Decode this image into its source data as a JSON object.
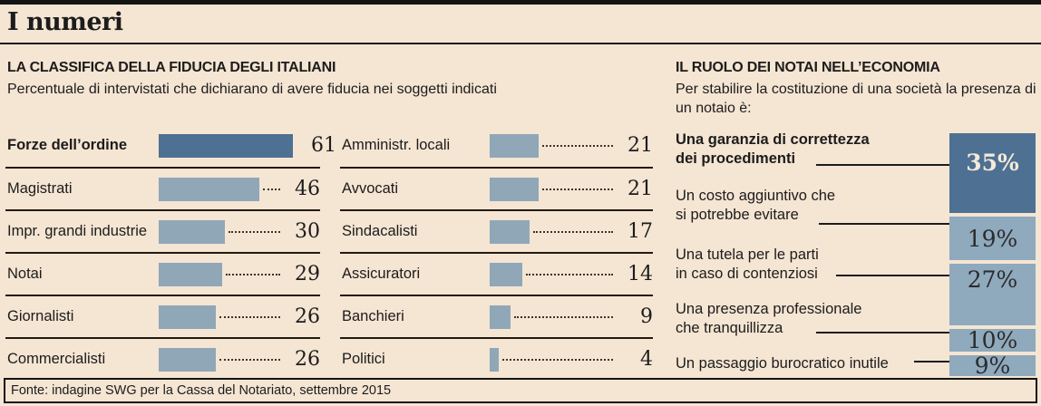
{
  "header": {
    "title": "I numeri"
  },
  "left_section": {
    "title": "LA CLASSIFICA DELLA FIDUCIA DEGLI ITALIANI",
    "subtitle": "Percentuale di intervistati che dichiarano di avere fiducia nei soggetti indicati"
  },
  "right_section": {
    "title": "IL RUOLO DEI NOTAI NELL’ECONOMIA",
    "subtitle": "Per stabilire la costituzione di una società la presenza di un notaio è:"
  },
  "footer": {
    "source": "Fonte: indagine SWG per la Cassa del Notariato, settembre 2015"
  },
  "colors": {
    "background": "#f5e5d3",
    "bar_dark": "#4d7093",
    "bar_light": "#90a7b8",
    "box_light": "#8fa9bd",
    "rule": "#141414",
    "pct_light_text": "#f4ead9"
  },
  "chart_data": [
    {
      "type": "bar",
      "orientation": "horizontal",
      "title": "LA CLASSIFICA DELLA FIDUCIA DEGLI ITALIANI",
      "subtitle": "Percentuale di intervistati che dichiarano di avere fiducia nei soggetti indicati",
      "unit": "%",
      "categories": [
        "Forze dell’ordine",
        "Magistrati",
        "Impr. grandi industrie",
        "Notai",
        "Giornalisti",
        "Commercialisti",
        "Amministr. locali",
        "Avvocati",
        "Sindacalisti",
        "Assicuratori",
        "Banchieri",
        "Politici"
      ],
      "values": [
        61,
        46,
        30,
        29,
        26,
        26,
        21,
        21,
        17,
        14,
        9,
        4
      ],
      "highlight_category": "Forze dell’ordine",
      "layout_hint": "two column list, rows 1-6 left, rows 7-12 right, dotted leaders to right-aligned values, grid off"
    },
    {
      "type": "bar",
      "orientation": "vertical-stacked-boxes",
      "title": "IL RUOLO DEI NOTAI NELL’ECONOMIA",
      "subtitle": "Per stabilire la costituzione di una società la presenza di un notaio è:",
      "unit": "%",
      "categories": [
        "Una garanzia di correttezza dei procedimenti",
        "Un costo aggiuntivo che si potrebbe evitare",
        "Una tutela per le parti in caso di contenziosi",
        "Una presenza professionale che tranquillizza",
        "Un passaggio burocratico inutile"
      ],
      "values": [
        35,
        19,
        27,
        10,
        9
      ],
      "highlight_category": "Una garanzia di correttezza dei procedimenti",
      "layout_hint": "box heights proportional to value, labels at left connected by lines with end dots"
    }
  ],
  "role_display": {
    "items": [
      {
        "line1": "Una garanzia di correttezza",
        "line2": "dei procedimenti",
        "pct": "35%"
      },
      {
        "line1": "Un costo aggiuntivo che",
        "line2": "si potrebbe evitare",
        "pct": "19%"
      },
      {
        "line1": "Una tutela per le parti",
        "line2": "in caso di contenziosi",
        "pct": "27%"
      },
      {
        "line1": "Una presenza professionale",
        "line2": "che tranquillizza",
        "pct": "10%"
      },
      {
        "line1": "Un passaggio burocratico inutile",
        "line2": "",
        "pct": "9%"
      }
    ]
  }
}
